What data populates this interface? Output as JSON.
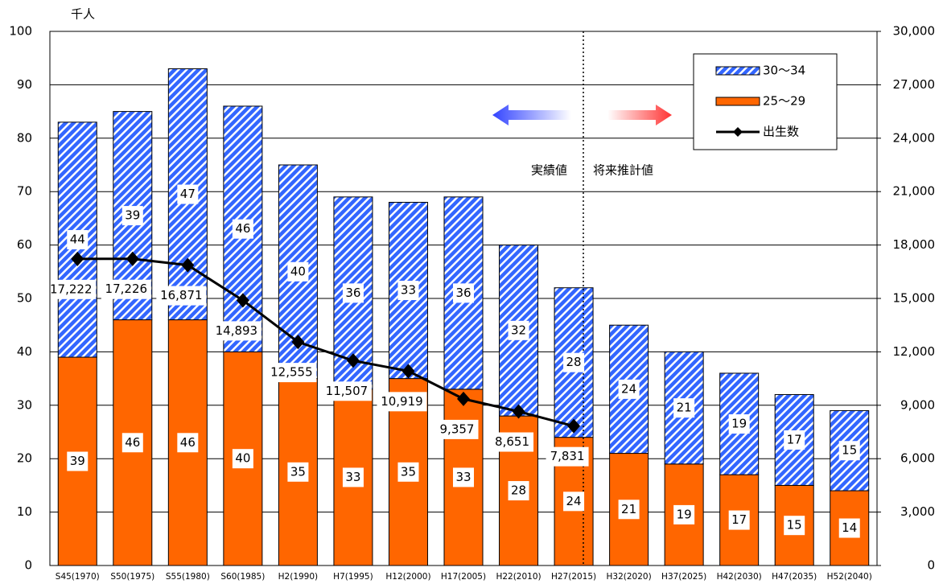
{
  "chart_data": {
    "type": "bar",
    "stacked": true,
    "unit_label": "千人",
    "annotations": [
      "実績値",
      "将来推計値"
    ],
    "categories": [
      "S45(1970)",
      "S50(1975)",
      "S55(1980)",
      "S60(1985)",
      "H2(1990)",
      "H7(1995)",
      "H12(2000)",
      "H17(2005)",
      "H22(2010)",
      "H27(2015)",
      "H32(2020)",
      "H37(2025)",
      "H42(2030)",
      "H47(2035)",
      "H52(2040)"
    ],
    "series": [
      {
        "name": "25～29",
        "color": "#ff6600",
        "values": [
          39,
          46,
          46,
          40,
          35,
          33,
          35,
          33,
          28,
          24,
          21,
          19,
          17,
          15,
          14
        ]
      },
      {
        "name": "30～34",
        "color": "#3366ff",
        "hatch": true,
        "values": [
          44,
          39,
          47,
          46,
          40,
          36,
          33,
          36,
          32,
          28,
          24,
          21,
          19,
          17,
          15
        ]
      },
      {
        "name": "出生数",
        "color": "#000000",
        "type": "line",
        "axis": "y2",
        "values": [
          17222,
          17226,
          16871,
          14893,
          12555,
          11507,
          10919,
          9357,
          8651,
          7831,
          null,
          null,
          null,
          null,
          null
        ],
        "value_labels": [
          "17,222",
          "17,226",
          "16,871",
          "14,893",
          "12,555",
          "11,507",
          "10,919",
          "9,357",
          "8,651",
          "7,831",
          null,
          null,
          null,
          null,
          null
        ]
      }
    ],
    "ylim": [
      0,
      100
    ],
    "yticks": [
      0,
      10,
      20,
      30,
      40,
      50,
      60,
      70,
      80,
      90,
      100
    ],
    "y2lim": [
      0,
      30000
    ],
    "y2ticks": [
      0,
      {
        "value": 3000,
        "label": "3,000"
      },
      {
        "value": 6000,
        "label": "6,000"
      },
      {
        "value": 9000,
        "label": "9,000"
      },
      {
        "value": 12000,
        "label": "12,000"
      },
      {
        "value": 15000,
        "label": "15,000"
      },
      {
        "value": 18000,
        "label": "18,000"
      },
      {
        "value": 21000,
        "label": "21,000"
      },
      {
        "value": 24000,
        "label": "24,000"
      },
      {
        "value": 27000,
        "label": "27,000"
      },
      {
        "value": 30000,
        "label": "30,000"
      }
    ],
    "grid": true
  }
}
